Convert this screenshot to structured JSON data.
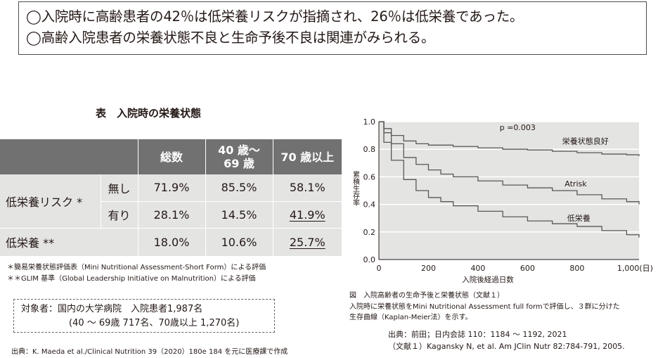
{
  "summary": {
    "line1": "◯入院時に高齢患者の42％は低栄養リスクが指摘され、26％は低栄養であった。",
    "line2": "◯高齢入院患者の栄養状態不良と生命予後不良は関連がみられる。"
  },
  "table": {
    "title": "表　入院時の栄養状態",
    "headers": {
      "total": "総数",
      "age40_line1": "40 歳～",
      "age40_line2": "69 歳",
      "age70": "70 歳以上"
    },
    "risk_label": "低栄養リスク *",
    "risk_none_label": "無し",
    "risk_yes_label": "有り",
    "maln_label": "低栄養 **",
    "rows": {
      "risk_none": [
        "71.9%",
        "85.5%",
        "58.1%"
      ],
      "risk_yes": [
        "28.1%",
        "14.5%",
        "41.9%"
      ],
      "maln": [
        "18.0%",
        "10.6%",
        "25.7%"
      ]
    }
  },
  "notes": {
    "n1": "＊簡易栄養状態評価表（Mini Nutritional Assessment-Short Form）による評価",
    "n2": "＊＊GLIM 基準（Global Leadership Initiative on Malnutrition）による評価"
  },
  "target": {
    "line1": "対象者：国内の大学病院　入院患者1,987名",
    "line2": "(40 ～ 69歳  717名、70歳以上  1,270名)"
  },
  "source_left": "出典：K. Maeda et al./Clinical Nutrition 39（2020）180e 184 を元に医療課で作成",
  "chart_data": {
    "type": "line",
    "title": "",
    "xlabel": "入院後経過日数",
    "ylabel": "累積生存率",
    "x_ticks": [
      "0",
      "200",
      "400",
      "600",
      "800",
      "1,000(日)"
    ],
    "y_ticks": [
      "0.0",
      "0.2",
      "0.4",
      "0.6",
      "0.8",
      "1.0"
    ],
    "xlim": [
      0,
      1050
    ],
    "ylim": [
      0,
      1.0
    ],
    "grid": "horizontal",
    "annotation": "p =0.003",
    "series": [
      {
        "name": "栄養状態良好",
        "x": [
          0,
          20,
          50,
          100,
          150,
          200,
          300,
          400,
          500,
          600,
          700,
          800,
          900,
          1000,
          1050
        ],
        "y": [
          1.0,
          0.95,
          0.9,
          0.86,
          0.84,
          0.83,
          0.82,
          0.81,
          0.8,
          0.795,
          0.785,
          0.775,
          0.765,
          0.76,
          0.75
        ]
      },
      {
        "name": "Atrisk",
        "x": [
          0,
          20,
          50,
          100,
          150,
          200,
          250,
          300,
          400,
          500,
          600,
          700,
          800,
          900,
          1000,
          1050
        ],
        "y": [
          1.0,
          0.92,
          0.84,
          0.74,
          0.69,
          0.65,
          0.62,
          0.6,
          0.57,
          0.54,
          0.52,
          0.5,
          0.47,
          0.44,
          0.42,
          0.4
        ]
      },
      {
        "name": "低栄養",
        "x": [
          0,
          20,
          50,
          100,
          150,
          200,
          250,
          300,
          400,
          500,
          600,
          700,
          800,
          900,
          1000,
          1050
        ],
        "y": [
          1.0,
          0.85,
          0.72,
          0.58,
          0.5,
          0.45,
          0.42,
          0.39,
          0.35,
          0.31,
          0.28,
          0.26,
          0.24,
          0.21,
          0.18,
          0.16
        ]
      }
    ]
  },
  "caption": {
    "line1": "図　入院高齢者の生命予後と栄養状態（文献１）",
    "line2": "入院時に栄養状態をMini Nutritional Assessment full formで評価し、３群に分けた",
    "line3": "生存曲線（Kaplan-Meier法）を示す。"
  },
  "source_right": {
    "line1": "出典：前田；日内会誌  110：1184 ～ 1192, 2021",
    "line2": "（文献１）Kagansky N, et al. Am   JClin Nutr 82:784-791, 2005."
  }
}
